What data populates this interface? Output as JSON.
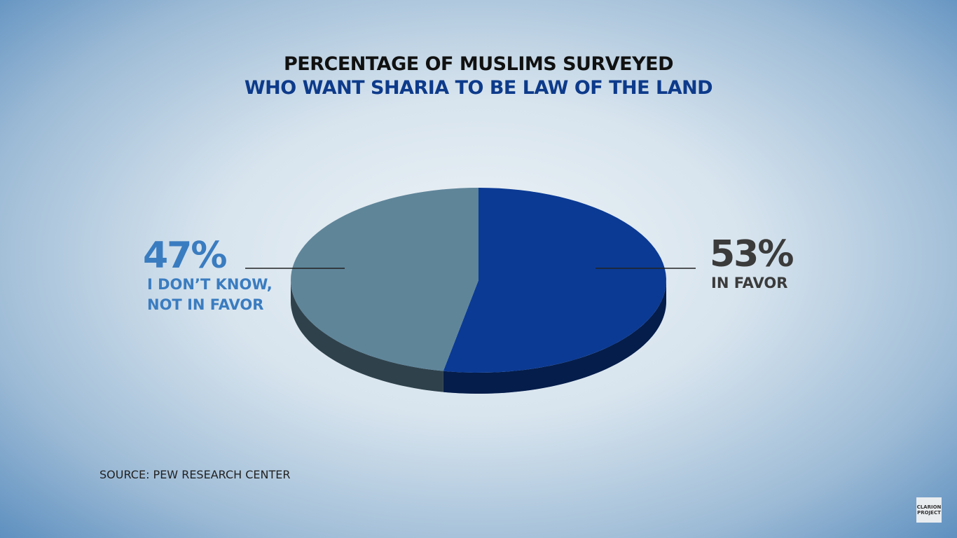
{
  "chart_data": {
    "type": "pie",
    "title": "PERCENTAGE OF MUSLIMS SURVEYED",
    "subtitle": "WHO WANT SHARIA TO BE LAW OF THE LAND",
    "categories": [
      "IN FAVOR",
      "I DON’T KNOW, NOT IN FAVOR"
    ],
    "values": [
      53,
      47
    ],
    "value_labels": [
      "53%",
      "47%"
    ],
    "colors": [
      "#0b3a94",
      "#5f8599"
    ],
    "source": "SOURCE: PEW RESEARCH CENTER"
  },
  "logo": "CLARION PROJECT"
}
